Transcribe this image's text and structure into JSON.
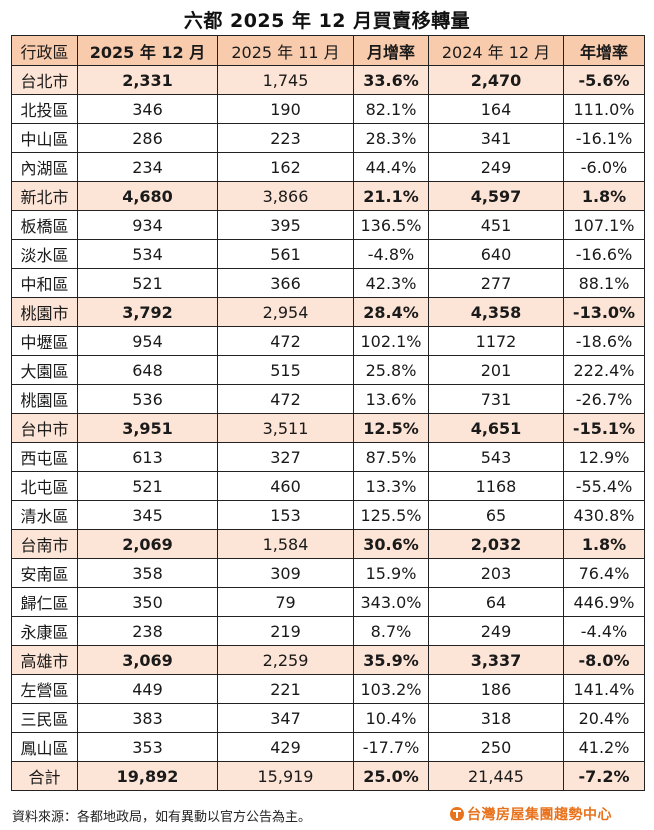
{
  "title": "六都 2025 年 12 月買賣移轉量",
  "table": {
    "headers": [
      "行政區",
      "2025 年 12 月",
      "2025 年 11 月",
      "月增率",
      "2024 年 12 月",
      "年增率"
    ],
    "rows": [
      {
        "type": "city",
        "cells": [
          "台北市",
          "2,331",
          "1,745",
          "33.6%",
          "2,470",
          "-5.6%"
        ]
      },
      {
        "type": "district",
        "cells": [
          "北投區",
          "346",
          "190",
          "82.1%",
          "164",
          "111.0%"
        ]
      },
      {
        "type": "district",
        "cells": [
          "中山區",
          "286",
          "223",
          "28.3%",
          "341",
          "-16.1%"
        ]
      },
      {
        "type": "district",
        "cells": [
          "內湖區",
          "234",
          "162",
          "44.4%",
          "249",
          "-6.0%"
        ]
      },
      {
        "type": "city",
        "cells": [
          "新北市",
          "4,680",
          "3,866",
          "21.1%",
          "4,597",
          "1.8%"
        ]
      },
      {
        "type": "district",
        "cells": [
          "板橋區",
          "934",
          "395",
          "136.5%",
          "451",
          "107.1%"
        ]
      },
      {
        "type": "district",
        "cells": [
          "淡水區",
          "534",
          "561",
          "-4.8%",
          "640",
          "-16.6%"
        ]
      },
      {
        "type": "district",
        "cells": [
          "中和區",
          "521",
          "366",
          "42.3%",
          "277",
          "88.1%"
        ]
      },
      {
        "type": "city",
        "cells": [
          "桃園市",
          "3,792",
          "2,954",
          "28.4%",
          "4,358",
          "-13.0%"
        ]
      },
      {
        "type": "district",
        "cells": [
          "中壢區",
          "954",
          "472",
          "102.1%",
          "1172",
          "-18.6%"
        ]
      },
      {
        "type": "district",
        "cells": [
          "大園區",
          "648",
          "515",
          "25.8%",
          "201",
          "222.4%"
        ]
      },
      {
        "type": "district",
        "cells": [
          "桃園區",
          "536",
          "472",
          "13.6%",
          "731",
          "-26.7%"
        ]
      },
      {
        "type": "city",
        "cells": [
          "台中市",
          "3,951",
          "3,511",
          "12.5%",
          "4,651",
          "-15.1%"
        ]
      },
      {
        "type": "district",
        "cells": [
          "西屯區",
          "613",
          "327",
          "87.5%",
          "543",
          "12.9%"
        ]
      },
      {
        "type": "district",
        "cells": [
          "北屯區",
          "521",
          "460",
          "13.3%",
          "1168",
          "-55.4%"
        ]
      },
      {
        "type": "district",
        "cells": [
          "清水區",
          "345",
          "153",
          "125.5%",
          "65",
          "430.8%"
        ]
      },
      {
        "type": "city",
        "cells": [
          "台南市",
          "2,069",
          "1,584",
          "30.6%",
          "2,032",
          "1.8%"
        ]
      },
      {
        "type": "district",
        "cells": [
          "安南區",
          "358",
          "309",
          "15.9%",
          "203",
          "76.4%"
        ]
      },
      {
        "type": "district",
        "cells": [
          "歸仁區",
          "350",
          "79",
          "343.0%",
          "64",
          "446.9%"
        ]
      },
      {
        "type": "district",
        "cells": [
          "永康區",
          "238",
          "219",
          "8.7%",
          "249",
          "-4.4%"
        ]
      },
      {
        "type": "city",
        "cells": [
          "高雄市",
          "3,069",
          "2,259",
          "35.9%",
          "3,337",
          "-8.0%"
        ]
      },
      {
        "type": "district",
        "cells": [
          "左營區",
          "449",
          "221",
          "103.2%",
          "186",
          "141.4%"
        ]
      },
      {
        "type": "district",
        "cells": [
          "三民區",
          "383",
          "347",
          "10.4%",
          "318",
          "20.4%"
        ]
      },
      {
        "type": "district",
        "cells": [
          "鳳山區",
          "353",
          "429",
          "-17.7%",
          "250",
          "41.2%"
        ]
      },
      {
        "type": "total",
        "cells": [
          "合計",
          "19,892",
          "15,919",
          "25.0%",
          "21,445",
          "-7.2%"
        ]
      }
    ]
  },
  "footer": {
    "source": "資料來源：各都地政局，如有異動以官方公告為主。",
    "brand": "台灣房屋集團趨勢中心",
    "brand_icon": "taiwan-realty-logo-icon"
  },
  "colors": {
    "header_bg": "#f8cbad",
    "city_row_bg": "#fce4d6",
    "brand_orange": "#e8731e",
    "border": "#222222"
  }
}
